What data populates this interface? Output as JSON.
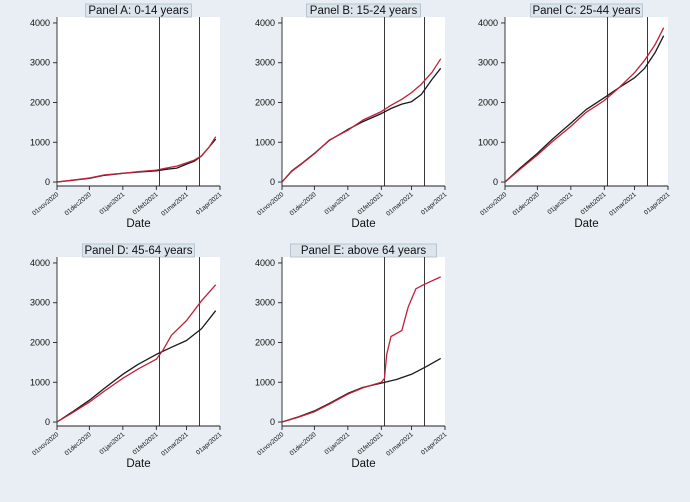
{
  "chart_data": [
    {
      "type": "line",
      "title": "Panel A: 0-14 years",
      "xlabel": "Date",
      "ylabel": "",
      "x_ticks": [
        "01nov2020",
        "01dec2020",
        "01jan2021",
        "01feb2021",
        "01mar2021",
        "01apr2021"
      ],
      "y_ticks": [
        0,
        1000,
        2000,
        3000,
        4000
      ],
      "xlim": [
        "2020-11-01",
        "2021-04-01"
      ],
      "ylim": [
        -100,
        4150
      ],
      "vertical_lines": [
        "2021-02-04",
        "2021-03-13"
      ],
      "series": [
        {
          "color": "#1a1a1a",
          "points": [
            [
              "2020-11-01",
              0
            ],
            [
              "2020-11-15",
              40
            ],
            [
              "2020-12-01",
              90
            ],
            [
              "2020-12-15",
              170
            ],
            [
              "2021-01-01",
              220
            ],
            [
              "2021-01-15",
              250
            ],
            [
              "2021-02-01",
              280
            ],
            [
              "2021-02-10",
              320
            ],
            [
              "2021-02-20",
              350
            ],
            [
              "2021-03-01",
              450
            ],
            [
              "2021-03-08",
              520
            ],
            [
              "2021-03-15",
              660
            ],
            [
              "2021-03-22",
              880
            ],
            [
              "2021-03-28",
              1080
            ]
          ]
        },
        {
          "color": "#c0203a",
          "points": [
            [
              "2020-11-01",
              0
            ],
            [
              "2020-11-15",
              45
            ],
            [
              "2020-12-01",
              100
            ],
            [
              "2020-12-15",
              180
            ],
            [
              "2021-01-01",
              220
            ],
            [
              "2021-01-15",
              260
            ],
            [
              "2021-02-01",
              300
            ],
            [
              "2021-02-10",
              350
            ],
            [
              "2021-02-20",
              400
            ],
            [
              "2021-03-01",
              480
            ],
            [
              "2021-03-08",
              550
            ],
            [
              "2021-03-15",
              660
            ],
            [
              "2021-03-22",
              880
            ],
            [
              "2021-03-28",
              1140
            ]
          ]
        }
      ]
    },
    {
      "type": "line",
      "title": "Panel B: 15-24 years",
      "xlabel": "Date",
      "ylabel": "",
      "x_ticks": [
        "01nov2020",
        "01dec2020",
        "01jan2021",
        "01feb2021",
        "01mar2021",
        "01apr2021"
      ],
      "y_ticks": [
        0,
        1000,
        2000,
        3000,
        4000
      ],
      "xlim": [
        "2020-11-01",
        "2021-04-01"
      ],
      "ylim": [
        -100,
        4150
      ],
      "vertical_lines": [
        "2021-02-04",
        "2021-03-13"
      ],
      "series": [
        {
          "color": "#1a1a1a",
          "points": [
            [
              "2020-11-01",
              0
            ],
            [
              "2020-11-10",
              280
            ],
            [
              "2020-11-20",
              480
            ],
            [
              "2020-12-01",
              720
            ],
            [
              "2020-12-15",
              1050
            ],
            [
              "2021-01-01",
              1320
            ],
            [
              "2021-01-15",
              1520
            ],
            [
              "2021-02-01",
              1720
            ],
            [
              "2021-02-10",
              1850
            ],
            [
              "2021-02-20",
              1960
            ],
            [
              "2021-03-01",
              2020
            ],
            [
              "2021-03-10",
              2200
            ],
            [
              "2021-03-20",
              2580
            ],
            [
              "2021-03-28",
              2860
            ]
          ]
        },
        {
          "color": "#c0203a",
          "points": [
            [
              "2020-11-01",
              0
            ],
            [
              "2020-11-10",
              270
            ],
            [
              "2020-11-20",
              470
            ],
            [
              "2020-12-01",
              710
            ],
            [
              "2020-12-15",
              1060
            ],
            [
              "2021-01-01",
              1300
            ],
            [
              "2021-01-15",
              1560
            ],
            [
              "2021-02-01",
              1770
            ],
            [
              "2021-02-10",
              1930
            ],
            [
              "2021-02-20",
              2080
            ],
            [
              "2021-03-01",
              2250
            ],
            [
              "2021-03-10",
              2460
            ],
            [
              "2021-03-20",
              2760
            ],
            [
              "2021-03-28",
              3100
            ]
          ]
        }
      ]
    },
    {
      "type": "line",
      "title": "Panel C: 25-44 years",
      "xlabel": "Date",
      "ylabel": "",
      "x_ticks": [
        "01nov2020",
        "01dec2020",
        "01jan2021",
        "01feb2021",
        "01mar2021",
        "01apr2021"
      ],
      "y_ticks": [
        0,
        1000,
        2000,
        3000,
        4000
      ],
      "xlim": [
        "2020-11-01",
        "2021-04-01"
      ],
      "ylim": [
        -100,
        4150
      ],
      "vertical_lines": [
        "2021-02-04",
        "2021-03-13"
      ],
      "series": [
        {
          "color": "#1a1a1a",
          "points": [
            [
              "2020-11-01",
              0
            ],
            [
              "2020-11-15",
              350
            ],
            [
              "2020-12-01",
              720
            ],
            [
              "2020-12-15",
              1080
            ],
            [
              "2021-01-01",
              1480
            ],
            [
              "2021-01-15",
              1820
            ],
            [
              "2021-02-01",
              2120
            ],
            [
              "2021-02-15",
              2380
            ],
            [
              "2021-03-01",
              2620
            ],
            [
              "2021-03-10",
              2850
            ],
            [
              "2021-03-20",
              3250
            ],
            [
              "2021-03-28",
              3680
            ]
          ]
        },
        {
          "color": "#c0203a",
          "points": [
            [
              "2020-11-01",
              0
            ],
            [
              "2020-11-15",
              320
            ],
            [
              "2020-12-01",
              680
            ],
            [
              "2020-12-15",
              1020
            ],
            [
              "2021-01-01",
              1400
            ],
            [
              "2021-01-15",
              1750
            ],
            [
              "2021-02-01",
              2050
            ],
            [
              "2021-02-15",
              2380
            ],
            [
              "2021-03-01",
              2750
            ],
            [
              "2021-03-10",
              3050
            ],
            [
              "2021-03-20",
              3450
            ],
            [
              "2021-03-28",
              3880
            ]
          ]
        }
      ]
    },
    {
      "type": "line",
      "title": "Panel D: 45-64 years",
      "xlabel": "Date",
      "ylabel": "",
      "x_ticks": [
        "01nov2020",
        "01dec2020",
        "01jan2021",
        "01feb2021",
        "01mar2021",
        "01apr2021"
      ],
      "y_ticks": [
        0,
        1000,
        2000,
        3000,
        4000
      ],
      "xlim": [
        "2020-11-01",
        "2021-04-01"
      ],
      "ylim": [
        -100,
        4150
      ],
      "vertical_lines": [
        "2021-02-04",
        "2021-03-13"
      ],
      "series": [
        {
          "color": "#1a1a1a",
          "points": [
            [
              "2020-11-01",
              0
            ],
            [
              "2020-11-15",
              250
            ],
            [
              "2020-12-01",
              550
            ],
            [
              "2020-12-15",
              850
            ],
            [
              "2021-01-01",
              1200
            ],
            [
              "2021-01-15",
              1450
            ],
            [
              "2021-02-01",
              1700
            ],
            [
              "2021-02-15",
              1880
            ],
            [
              "2021-03-01",
              2050
            ],
            [
              "2021-03-15",
              2350
            ],
            [
              "2021-03-28",
              2800
            ]
          ]
        },
        {
          "color": "#c0203a",
          "points": [
            [
              "2020-11-01",
              0
            ],
            [
              "2020-11-15",
              230
            ],
            [
              "2020-12-01",
              500
            ],
            [
              "2020-12-15",
              780
            ],
            [
              "2021-01-01",
              1100
            ],
            [
              "2021-01-15",
              1330
            ],
            [
              "2021-02-01",
              1580
            ],
            [
              "2021-02-07",
              1800
            ],
            [
              "2021-02-15",
              2180
            ],
            [
              "2021-03-01",
              2550
            ],
            [
              "2021-03-15",
              3050
            ],
            [
              "2021-03-28",
              3450
            ]
          ]
        }
      ]
    },
    {
      "type": "line",
      "title": "Panel E: above 64 years",
      "xlabel": "Date",
      "ylabel": "",
      "x_ticks": [
        "01nov2020",
        "01dec2020",
        "01jan2021",
        "01feb2021",
        "01mar2021",
        "01apr2021"
      ],
      "y_ticks": [
        0,
        1000,
        2000,
        3000,
        4000
      ],
      "xlim": [
        "2020-11-01",
        "2021-04-01"
      ],
      "ylim": [
        -100,
        4150
      ],
      "vertical_lines": [
        "2021-02-04",
        "2021-03-13"
      ],
      "series": [
        {
          "color": "#1a1a1a",
          "points": [
            [
              "2020-11-01",
              0
            ],
            [
              "2020-11-15",
              120
            ],
            [
              "2020-12-01",
              280
            ],
            [
              "2020-12-15",
              470
            ],
            [
              "2021-01-01",
              720
            ],
            [
              "2021-01-15",
              870
            ],
            [
              "2021-02-01",
              980
            ],
            [
              "2021-02-15",
              1070
            ],
            [
              "2021-03-01",
              1200
            ],
            [
              "2021-03-15",
              1400
            ],
            [
              "2021-03-28",
              1600
            ]
          ]
        },
        {
          "color": "#c0203a",
          "points": [
            [
              "2020-11-01",
              0
            ],
            [
              "2020-11-15",
              110
            ],
            [
              "2020-12-01",
              260
            ],
            [
              "2020-12-15",
              450
            ],
            [
              "2021-01-01",
              700
            ],
            [
              "2021-01-15",
              860
            ],
            [
              "2021-02-01",
              1000
            ],
            [
              "2021-02-04",
              1100
            ],
            [
              "2021-02-06",
              1700
            ],
            [
              "2021-02-10",
              2150
            ],
            [
              "2021-02-20",
              2300
            ],
            [
              "2021-02-26",
              2900
            ],
            [
              "2021-03-05",
              3350
            ],
            [
              "2021-03-12",
              3450
            ],
            [
              "2021-03-28",
              3650
            ]
          ]
        }
      ]
    }
  ]
}
